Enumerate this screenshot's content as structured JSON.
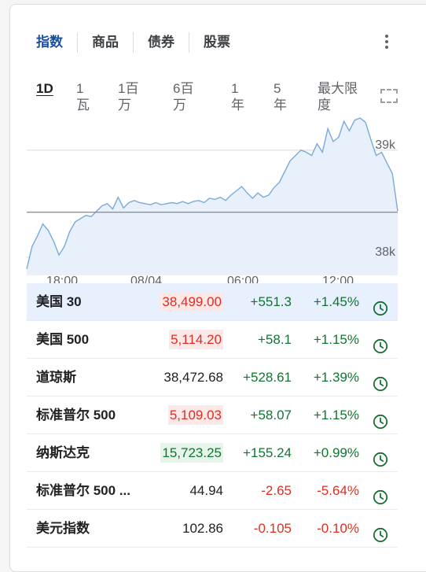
{
  "tabs": [
    {
      "label": "指数",
      "active": true
    },
    {
      "label": "商品",
      "active": false
    },
    {
      "label": "债券",
      "active": false
    },
    {
      "label": "股票",
      "active": false
    }
  ],
  "ranges": [
    {
      "label": "1D",
      "active": true
    },
    {
      "label": "1\n瓦",
      "active": false
    },
    {
      "label": "1百\n万",
      "active": false
    },
    {
      "label": "6百\n万",
      "active": false
    },
    {
      "label": "1\n年",
      "active": false
    },
    {
      "label": "5\n年",
      "active": false
    },
    {
      "label": "最大限\n度",
      "active": false
    }
  ],
  "colors": {
    "accent": "#1a4f9c",
    "line": "#7aaad6",
    "fill": "#e8f0fb",
    "up": "#137333",
    "down": "#d93025"
  },
  "chart_data": {
    "type": "area",
    "title": "",
    "y_tick_labels": [
      "39k",
      "38k"
    ],
    "x_tick_labels": [
      "18:00",
      "08/04",
      "06:00",
      "12:00"
    ],
    "previous_close": 38420,
    "ylim": [
      37830,
      39300
    ],
    "x": [
      0,
      1,
      2,
      3,
      4,
      5,
      6,
      7,
      8,
      9,
      10,
      11,
      12,
      13,
      14,
      15,
      16,
      17,
      18,
      19,
      20,
      21,
      22,
      23,
      24,
      25,
      26,
      27,
      28,
      29,
      30,
      31,
      32,
      33,
      34,
      35,
      36,
      37,
      38,
      39,
      40,
      41,
      42,
      43,
      44,
      45,
      46,
      47,
      48,
      49,
      50,
      51,
      52,
      53,
      54,
      55,
      56,
      57,
      58,
      59,
      60,
      61,
      62,
      63,
      64,
      65,
      66,
      67,
      68,
      69
    ],
    "y": [
      37890,
      38100,
      38200,
      38310,
      38250,
      38150,
      38020,
      38100,
      38240,
      38330,
      38360,
      38390,
      38380,
      38430,
      38480,
      38500,
      38450,
      38560,
      38460,
      38510,
      38530,
      38510,
      38500,
      38490,
      38510,
      38490,
      38500,
      38510,
      38500,
      38520,
      38500,
      38520,
      38530,
      38510,
      38550,
      38540,
      38560,
      38530,
      38580,
      38620,
      38660,
      38600,
      38550,
      38600,
      38560,
      38580,
      38650,
      38700,
      38800,
      38900,
      38950,
      39000,
      38980,
      38950,
      39060,
      38980,
      39200,
      39080,
      39120,
      39270,
      39180,
      39280,
      39300,
      39260,
      39100,
      38950,
      38980,
      38880,
      38780,
      38430
    ],
    "series": [
      {
        "values": [
          37890,
          38100,
          38200,
          38310,
          38250,
          38150,
          38020,
          38100,
          38240,
          38330,
          38360,
          38390,
          38380,
          38430,
          38480,
          38500,
          38450,
          38560,
          38460,
          38510,
          38530,
          38510,
          38500,
          38490,
          38510,
          38490,
          38500,
          38510,
          38500,
          38520,
          38500,
          38520,
          38530,
          38510,
          38550,
          38540,
          38560,
          38530,
          38580,
          38620,
          38660,
          38600,
          38550,
          38600,
          38560,
          38580,
          38650,
          38700,
          38800,
          38900,
          38950,
          39000,
          38980,
          38950,
          39060,
          38980,
          39200,
          39080,
          39120,
          39270,
          39180,
          39280,
          39300,
          39260,
          39100,
          38950,
          38980,
          38880,
          38780,
          38430
        ]
      }
    ]
  },
  "quotes": [
    {
      "name": "美国 30",
      "price": "38,499.00",
      "price_bg": "down",
      "change": "+551.3",
      "pct": "+1.45%",
      "dir": "up",
      "highlight": true
    },
    {
      "name": "美国 500",
      "price": "5,114.20",
      "price_bg": "down",
      "change": "+58.1",
      "pct": "+1.15%",
      "dir": "up",
      "highlight": false
    },
    {
      "name": "道琼斯",
      "price": "38,472.68",
      "price_bg": "none",
      "change": "+528.61",
      "pct": "+1.39%",
      "dir": "up",
      "highlight": false
    },
    {
      "name": "标准普尔 500",
      "price": "5,109.03",
      "price_bg": "down",
      "change": "+58.07",
      "pct": "+1.15%",
      "dir": "up",
      "highlight": false
    },
    {
      "name": "纳斯达克",
      "price": "15,723.25",
      "price_bg": "up",
      "change": "+155.24",
      "pct": "+0.99%",
      "dir": "up",
      "highlight": false
    },
    {
      "name": "标准普尔 500 ...",
      "price": "44.94",
      "price_bg": "none",
      "change": "-2.65",
      "pct": "-5.64%",
      "dir": "down",
      "highlight": false
    },
    {
      "name": "美元指数",
      "price": "102.86",
      "price_bg": "none",
      "change": "-0.105",
      "pct": "-0.10%",
      "dir": "down",
      "highlight": false
    }
  ]
}
